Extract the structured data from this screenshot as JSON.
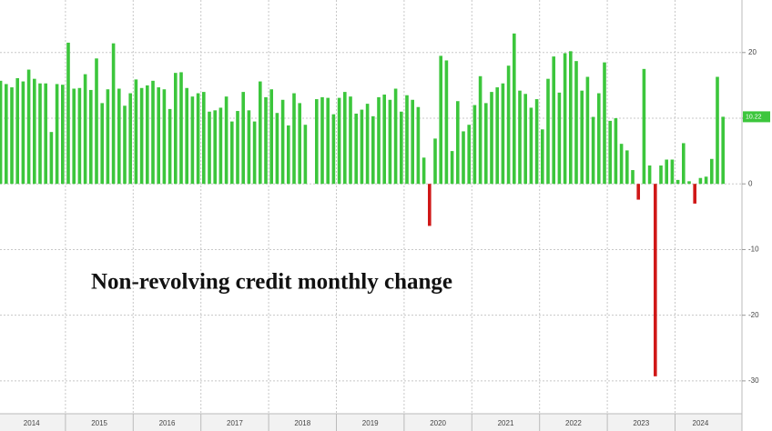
{
  "chart_data": {
    "type": "bar",
    "title": "Non-revolving credit monthly change",
    "categories": [
      "2014",
      null,
      null,
      null,
      null,
      null,
      null,
      null,
      null,
      null,
      null,
      null,
      "2015",
      null,
      null,
      null,
      null,
      null,
      null,
      null,
      null,
      null,
      null,
      null,
      "2016",
      null,
      null,
      null,
      null,
      null,
      null,
      null,
      null,
      null,
      null,
      null,
      "2017",
      null,
      null,
      null,
      null,
      null,
      null,
      null,
      null,
      null,
      null,
      null,
      "2018",
      null,
      null,
      null,
      null,
      null,
      null,
      null,
      null,
      null,
      null,
      null,
      "2019",
      null,
      null,
      null,
      null,
      null,
      null,
      null,
      null,
      null,
      null,
      null,
      "2020",
      null,
      null,
      null,
      null,
      null,
      null,
      null,
      null,
      null,
      null,
      null,
      "2021",
      null,
      null,
      null,
      null,
      null,
      null,
      null,
      null,
      null,
      null,
      null,
      "2022",
      null,
      null,
      null,
      null,
      null,
      null,
      null,
      null,
      null,
      null,
      null,
      "2023",
      null,
      null,
      null,
      null,
      null,
      null,
      null,
      null,
      null,
      null,
      null,
      "2024",
      null,
      null,
      null,
      null,
      null,
      null,
      null,
      null
    ],
    "values": [
      15.7,
      15.2,
      14.7,
      16.1,
      15.6,
      17.4,
      16.0,
      15.3,
      15.3,
      7.9,
      15.2,
      15.1,
      21.5,
      14.5,
      14.6,
      16.7,
      14.3,
      19.1,
      12.3,
      14.4,
      21.4,
      14.5,
      11.9,
      13.8,
      15.9,
      14.6,
      15.0,
      15.7,
      14.7,
      14.4,
      11.4,
      16.9,
      17.0,
      14.6,
      13.3,
      13.8,
      14.0,
      11.0,
      11.2,
      11.6,
      13.3,
      9.5,
      11.1,
      14.0,
      11.2,
      9.5,
      15.6,
      13.2,
      14.4,
      10.8,
      12.8,
      8.9,
      13.8,
      12.3,
      9.0,
      null,
      12.9,
      13.2,
      13.1,
      10.6,
      13.1,
      14.0,
      13.3,
      10.7,
      11.3,
      12.2,
      10.3,
      13.2,
      13.6,
      12.8,
      14.5,
      11.0,
      13.5,
      12.8,
      11.7,
      4.0,
      -6.4,
      6.9,
      19.5,
      18.8,
      5.0,
      12.6,
      8.0,
      9.0,
      12.0,
      16.4,
      12.3,
      14.0,
      14.7,
      15.3,
      18.0,
      22.9,
      14.2,
      13.7,
      11.6,
      12.9,
      8.3,
      16.0,
      19.4,
      13.9,
      19.9,
      20.2,
      18.7,
      14.2,
      16.3,
      10.2,
      13.8,
      18.5,
      9.6,
      10.0,
      6.1,
      5.1,
      2.1,
      -2.4,
      17.5,
      2.8,
      -29.3,
      2.8,
      3.7,
      3.7,
      0.6,
      6.2,
      0.4,
      -3.0,
      0.9,
      1.1,
      3.8,
      16.3,
      10.22
    ],
    "color": "#3cc63c",
    "negative_color": "#d01818",
    "ylim": [
      -35,
      28
    ],
    "yticks": [
      -30,
      -20,
      -10,
      0,
      10,
      20
    ],
    "grid": true
  }
}
